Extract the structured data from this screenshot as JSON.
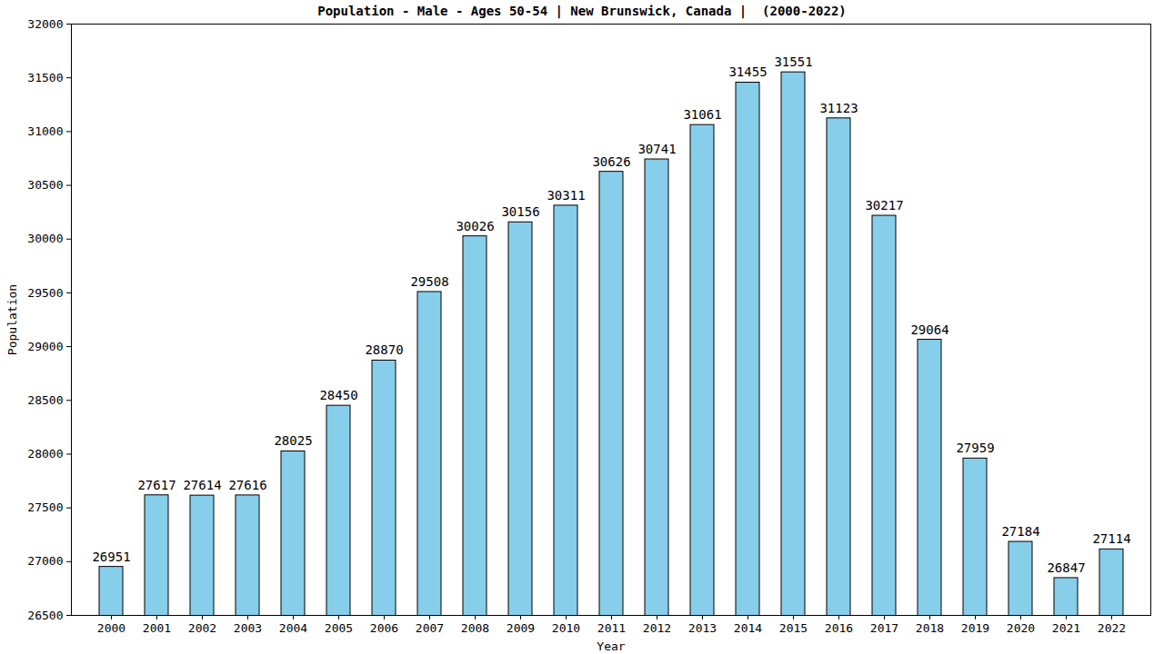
{
  "chart_data": {
    "type": "bar",
    "title": "Population - Male - Ages 50-54 | New Brunswick, Canada |  (2000-2022)",
    "x_label": "Year",
    "y_label": "Population",
    "categories": [
      "2000",
      "2001",
      "2002",
      "2003",
      "2004",
      "2005",
      "2006",
      "2007",
      "2008",
      "2009",
      "2010",
      "2011",
      "2012",
      "2013",
      "2014",
      "2015",
      "2016",
      "2017",
      "2018",
      "2019",
      "2020",
      "2021",
      "2022"
    ],
    "values": [
      26951,
      27617,
      27614,
      27616,
      28025,
      28450,
      28870,
      29508,
      30026,
      30156,
      30311,
      30626,
      30741,
      31061,
      31455,
      31551,
      31123,
      30217,
      29064,
      27959,
      27184,
      26847,
      27114
    ],
    "color": "#87ceeb",
    "ylim": [
      26500,
      32000
    ],
    "yticks": [
      26500,
      27000,
      27500,
      28000,
      28500,
      29000,
      29500,
      30000,
      30500,
      31000,
      31500,
      32000
    ],
    "grid": false,
    "data_labels": true
  }
}
